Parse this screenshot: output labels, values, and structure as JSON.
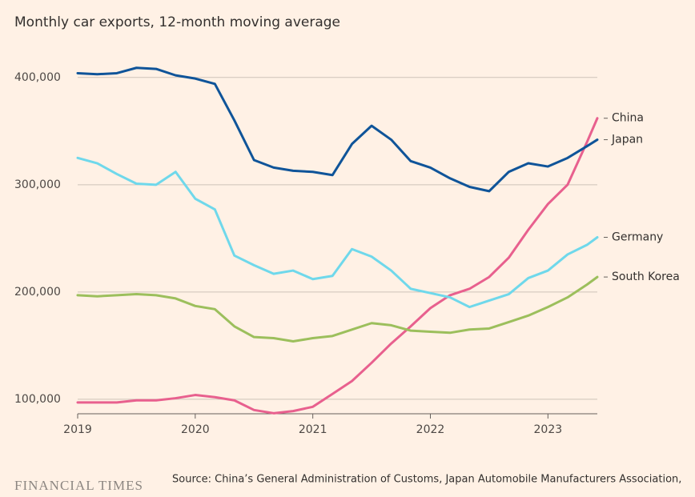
{
  "chart_data": {
    "type": "line",
    "title": "Monthly car exports, 12-month moving average",
    "source": "Source: China’s General Administration of Customs, Japan Automobile Manufacturers Association,",
    "logo": "FINANCIAL TIMES",
    "x": [
      2019,
      2019.167,
      2019.333,
      2019.5,
      2019.667,
      2019.833,
      2020,
      2020.167,
      2020.333,
      2020.5,
      2020.667,
      2020.833,
      2021,
      2021.167,
      2021.333,
      2021.5,
      2021.667,
      2021.833,
      2022,
      2022.167,
      2022.333,
      2022.5,
      2022.667,
      2022.833,
      2023,
      2023.167,
      2023.333,
      2023.42
    ],
    "series": [
      {
        "name": "China",
        "color": "#e8608e",
        "values": [
          97000,
          97000,
          97000,
          99000,
          99000,
          101000,
          104000,
          102000,
          99000,
          90000,
          87000,
          89000,
          93000,
          105000,
          117000,
          134000,
          152000,
          168000,
          185000,
          197000,
          203000,
          214000,
          232000,
          258000,
          282000,
          300000,
          340000,
          362000
        ]
      },
      {
        "name": "Japan",
        "color": "#0f5499",
        "values": [
          404000,
          403000,
          404000,
          409000,
          408000,
          402000,
          399000,
          394000,
          360000,
          323000,
          316000,
          313000,
          312000,
          309000,
          338000,
          355000,
          342000,
          322000,
          316000,
          306000,
          298000,
          294000,
          312000,
          320000,
          317000,
          325000,
          336000,
          342000
        ]
      },
      {
        "name": "Germany",
        "color": "#6fd8eb",
        "values": [
          325000,
          320000,
          310000,
          301000,
          300000,
          312000,
          287000,
          277000,
          234000,
          225000,
          217000,
          220000,
          212000,
          215000,
          240000,
          233000,
          220000,
          203000,
          199000,
          195000,
          186000,
          192000,
          198000,
          213000,
          220000,
          235000,
          244000,
          251000
        ]
      },
      {
        "name": "South Korea",
        "color": "#9cbf5c",
        "values": [
          197000,
          196000,
          197000,
          198000,
          197000,
          194000,
          187000,
          184000,
          168000,
          158000,
          157000,
          154000,
          157000,
          159000,
          165000,
          171000,
          169000,
          164000,
          163000,
          162000,
          165000,
          166000,
          172000,
          178000,
          186000,
          195000,
          207000,
          214000
        ]
      }
    ],
    "xlim": [
      2019,
      2023.42
    ],
    "xticks": [
      2019,
      2020,
      2021,
      2022,
      2023
    ],
    "ylim": [
      86500,
      420000
    ],
    "yticks": [
      {
        "value": 100000,
        "label": "100,000"
      },
      {
        "value": 200000,
        "label": "200,000"
      },
      {
        "value": 300000,
        "label": "300,000"
      },
      {
        "value": 400000,
        "label": "400,000"
      }
    ],
    "grid": true
  }
}
